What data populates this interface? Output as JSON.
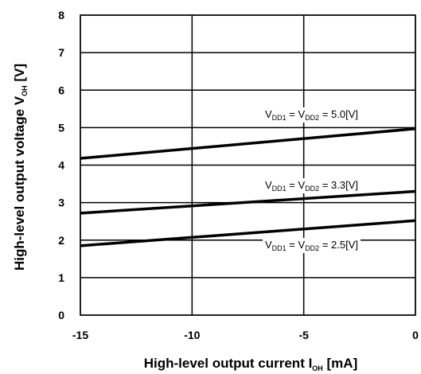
{
  "chart_data": {
    "type": "line",
    "xlabel": {
      "main": "High-level output current I",
      "sub": "OH",
      "unit": " [mA]"
    },
    "ylabel": {
      "main": "High-level output voltage V",
      "sub": "OH",
      "unit": " [V]"
    },
    "xlim": [
      -15,
      0
    ],
    "ylim": [
      0,
      8
    ],
    "xticks": [
      "-15",
      "-10",
      "-5",
      "0"
    ],
    "yticks": [
      "0",
      "1",
      "2",
      "3",
      "4",
      "5",
      "6",
      "7",
      "8"
    ],
    "grid": true,
    "series": [
      {
        "name": "VDD1 = VDD2 = 5.0[V]",
        "x": [
          -15,
          0
        ],
        "y": [
          4.18,
          4.97
        ],
        "label": {
          "v": "V",
          "sub1": "DD1",
          "eq": " = V",
          "sub2": "DD2",
          "val": " = 5.0[V]"
        }
      },
      {
        "name": "VDD1 = VDD2 = 3.3[V]",
        "x": [
          -15,
          0
        ],
        "y": [
          2.72,
          3.3
        ],
        "label": {
          "v": "V",
          "sub1": "DD1",
          "eq": " = V",
          "sub2": "DD2",
          "val": " = 3.3[V]"
        }
      },
      {
        "name": "VDD1 = VDD2 = 2.5[V]",
        "x": [
          -15,
          0
        ],
        "y": [
          1.85,
          2.52
        ],
        "label": {
          "v": "V",
          "sub1": "DD1",
          "eq": " = V",
          "sub2": "DD2",
          "val": " = 2.5[V]"
        }
      }
    ]
  }
}
